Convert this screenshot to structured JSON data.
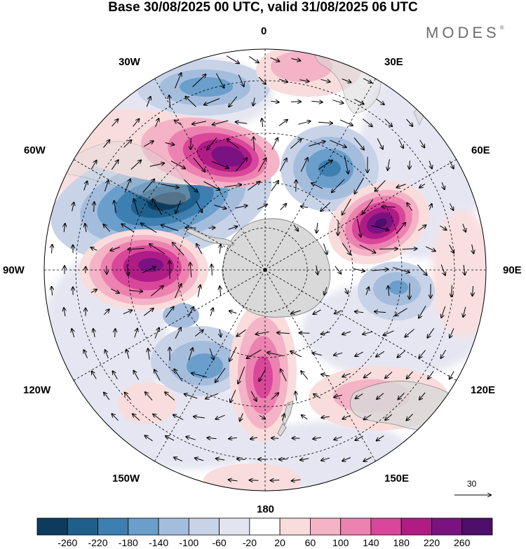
{
  "title": "Base 30/08/2025 00 UTC, valid 31/08/2025 06 UTC",
  "brand": "MODES",
  "brand_mark": "®",
  "longitude_labels": {
    "lon_0": "0",
    "lon_30e": "30E",
    "lon_60e": "60E",
    "lon_90e": "90E",
    "lon_120e": "120E",
    "lon_150e": "150E",
    "lon_180": "180",
    "lon_150w": "150W",
    "lon_120w": "120W",
    "lon_90w": "90W",
    "lon_60w": "60W",
    "lon_30w": "30W"
  },
  "reference_vector": {
    "value": "30"
  },
  "colorbar": {
    "labels": [
      "-260",
      "-220",
      "-180",
      "-140",
      "-100",
      "-60",
      "-20",
      "20",
      "60",
      "100",
      "140",
      "180",
      "220",
      "260"
    ],
    "colors": [
      "#0d3b5e",
      "#1f5f8b",
      "#3d7fb1",
      "#6a9ecb",
      "#a5bddd",
      "#c8d3e8",
      "#e4e4f1",
      "#ffffff",
      "#f9dcdc",
      "#f4b3c6",
      "#ec82b0",
      "#d9479a",
      "#b01c86",
      "#7b1282",
      "#4e0e6b"
    ]
  },
  "colors": {
    "land": "#d9d9d9",
    "coastline": "#777777",
    "grid": "#000000",
    "vector": "#000000"
  }
}
